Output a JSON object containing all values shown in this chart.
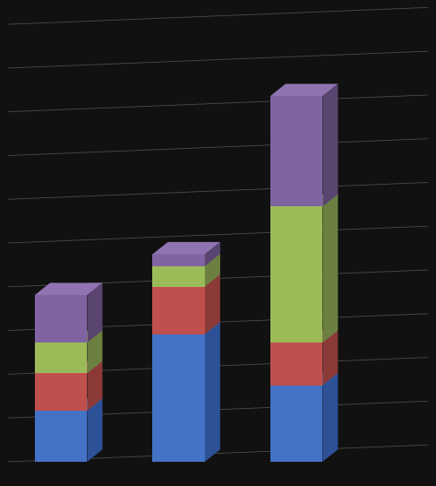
{
  "bars": [
    {
      "blue": 3.0,
      "red": 2.2,
      "green": 1.8,
      "purple": 2.8
    },
    {
      "blue": 7.5,
      "red": 2.8,
      "green": 1.2,
      "purple": 0.7
    },
    {
      "blue": 4.5,
      "red": 2.5,
      "green": 8.0,
      "purple": 6.5
    }
  ],
  "colors": {
    "blue": "#4472C4",
    "red": "#C0504D",
    "green": "#9BBB59",
    "purple": "#8064A2"
  },
  "blue_dark": "#2E5096",
  "red_dark": "#8B3A38",
  "green_dark": "#6B8040",
  "purple_dark": "#5A4570",
  "top_blue": "#5B8BD4",
  "top_red": "#D06060",
  "top_green": "#ABCB69",
  "top_purple": "#9074B2",
  "background": "#111111",
  "grid_color": "#666666",
  "figsize": [
    4.87,
    5.42
  ],
  "dpi": 100,
  "n_grid_lines": 10,
  "ylim_max": 25
}
